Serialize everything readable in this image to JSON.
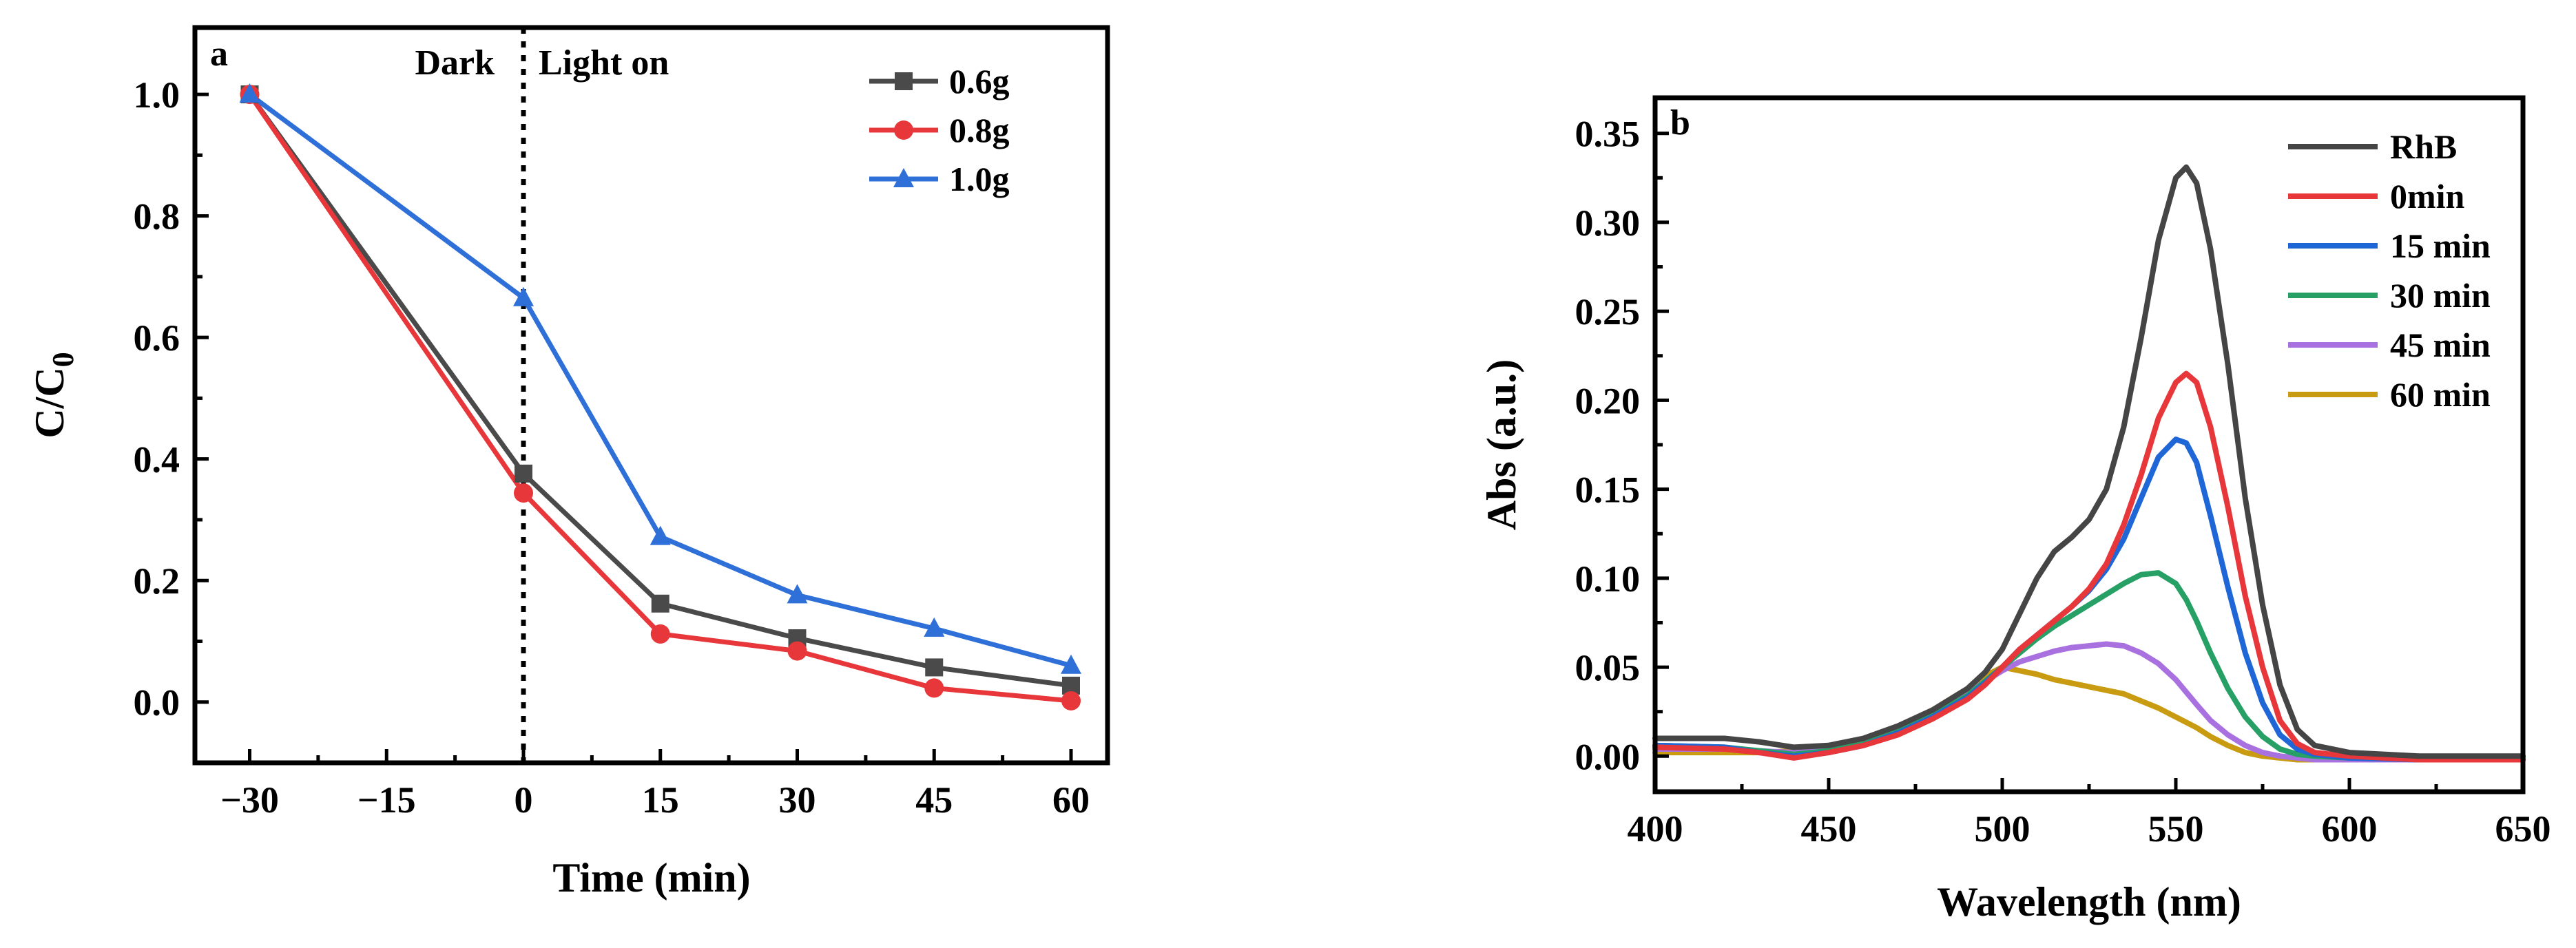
{
  "chart_data": [
    {
      "type": "line",
      "panel_label": "a",
      "xlabel": "Time (min)",
      "ylabel_main": "C/C",
      "ylabel_sub": "0",
      "x": [
        -30,
        0,
        15,
        30,
        45,
        60
      ],
      "x_ticks": [
        -30,
        -15,
        0,
        15,
        30,
        45,
        60
      ],
      "x_tick_labels": [
        "−30",
        "−15",
        "0",
        "15",
        "30",
        "45",
        "60"
      ],
      "xlim": [
        -36,
        64
      ],
      "y_ticks": [
        0.0,
        0.2,
        0.4,
        0.6,
        0.8,
        1.0
      ],
      "y_tick_labels": [
        "0.0",
        "0.2",
        "0.4",
        "0.6",
        "0.8",
        "1.0"
      ],
      "ylim": [
        -0.1,
        1.11
      ],
      "annotations": {
        "dark": "Dark",
        "light": "Light on"
      },
      "divider_x": 0,
      "legend_position": "top-right",
      "series": [
        {
          "name": "0.6g",
          "color": "#4a4a4a",
          "marker": "square",
          "values": [
            1.0,
            0.376,
            0.162,
            0.105,
            0.057,
            0.027
          ]
        },
        {
          "name": "0.8g",
          "color": "#e8373a",
          "marker": "circle",
          "values": [
            1.0,
            0.344,
            0.112,
            0.084,
            0.023,
            0.002
          ]
        },
        {
          "name": "1.0g",
          "color": "#2e6fd8",
          "marker": "triangle",
          "values": [
            1.0,
            0.665,
            0.272,
            0.176,
            0.121,
            0.06
          ]
        }
      ]
    },
    {
      "type": "line",
      "panel_label": "b",
      "xlabel": "Wavelength (nm)",
      "ylabel": "Abs (a.u.)",
      "x_ticks": [
        400,
        450,
        500,
        550,
        600,
        650
      ],
      "x_tick_labels": [
        "400",
        "450",
        "500",
        "550",
        "600",
        "650"
      ],
      "xlim": [
        400,
        650
      ],
      "y_ticks": [
        0.0,
        0.05,
        0.1,
        0.15,
        0.2,
        0.25,
        0.3,
        0.35
      ],
      "y_tick_labels": [
        "0.00",
        "0.05",
        "0.10",
        "0.15",
        "0.20",
        "0.25",
        "0.30",
        "0.35"
      ],
      "ylim": [
        -0.02,
        0.37
      ],
      "legend_position": "top-right",
      "x": [
        400,
        420,
        430,
        440,
        450,
        460,
        470,
        480,
        490,
        495,
        500,
        505,
        510,
        515,
        520,
        525,
        530,
        535,
        540,
        545,
        550,
        553,
        556,
        560,
        565,
        570,
        575,
        580,
        585,
        590,
        600,
        620,
        650
      ],
      "series": [
        {
          "name": "RhB",
          "color": "#454545",
          "values": [
            0.01,
            0.01,
            0.008,
            0.005,
            0.006,
            0.01,
            0.017,
            0.026,
            0.038,
            0.047,
            0.06,
            0.08,
            0.1,
            0.115,
            0.123,
            0.133,
            0.15,
            0.185,
            0.235,
            0.29,
            0.325,
            0.331,
            0.322,
            0.285,
            0.22,
            0.145,
            0.085,
            0.04,
            0.015,
            0.006,
            0.002,
            0.0,
            0.0
          ]
        },
        {
          "name": " 0min",
          "color": "#e8373a",
          "values": [
            0.005,
            0.004,
            0.002,
            -0.001,
            0.002,
            0.006,
            0.012,
            0.021,
            0.032,
            0.04,
            0.05,
            0.06,
            0.068,
            0.076,
            0.084,
            0.094,
            0.108,
            0.13,
            0.158,
            0.19,
            0.21,
            0.215,
            0.21,
            0.185,
            0.14,
            0.09,
            0.05,
            0.02,
            0.007,
            0.002,
            0.0,
            -0.002,
            -0.002
          ]
        },
        {
          "name": "15 min",
          "color": "#1f66d6",
          "values": [
            0.006,
            0.005,
            0.002,
            0.0,
            0.002,
            0.006,
            0.013,
            0.022,
            0.033,
            0.041,
            0.05,
            0.06,
            0.068,
            0.076,
            0.084,
            0.093,
            0.105,
            0.122,
            0.145,
            0.168,
            0.178,
            0.176,
            0.165,
            0.135,
            0.095,
            0.058,
            0.03,
            0.012,
            0.004,
            0.001,
            -0.001,
            -0.002,
            -0.002
          ]
        },
        {
          "name": "30 min",
          "color": "#27a065",
          "values": [
            0.006,
            0.005,
            0.003,
            0.001,
            0.003,
            0.007,
            0.014,
            0.023,
            0.034,
            0.042,
            0.05,
            0.058,
            0.066,
            0.073,
            0.079,
            0.085,
            0.091,
            0.097,
            0.102,
            0.103,
            0.097,
            0.088,
            0.076,
            0.058,
            0.038,
            0.022,
            0.011,
            0.004,
            0.001,
            0.0,
            -0.001,
            -0.001,
            -0.001
          ]
        },
        {
          "name": "45 min",
          "color": "#a970e0",
          "values": [
            0.004,
            0.004,
            0.003,
            0.002,
            0.004,
            0.008,
            0.015,
            0.024,
            0.035,
            0.042,
            0.048,
            0.053,
            0.056,
            0.059,
            0.061,
            0.062,
            0.063,
            0.062,
            0.058,
            0.052,
            0.043,
            0.036,
            0.029,
            0.02,
            0.012,
            0.006,
            0.002,
            0.0,
            -0.001,
            -0.002,
            -0.002,
            -0.002,
            -0.002
          ]
        },
        {
          "name": "60 min",
          "color": "#c89b10",
          "values": [
            0.002,
            0.002,
            0.002,
            0.003,
            0.005,
            0.009,
            0.016,
            0.026,
            0.038,
            0.045,
            0.05,
            0.048,
            0.046,
            0.043,
            0.041,
            0.039,
            0.037,
            0.035,
            0.031,
            0.027,
            0.022,
            0.019,
            0.016,
            0.011,
            0.006,
            0.002,
            0.0,
            -0.001,
            -0.002,
            -0.002,
            -0.002,
            -0.001,
            -0.001
          ]
        }
      ]
    }
  ]
}
